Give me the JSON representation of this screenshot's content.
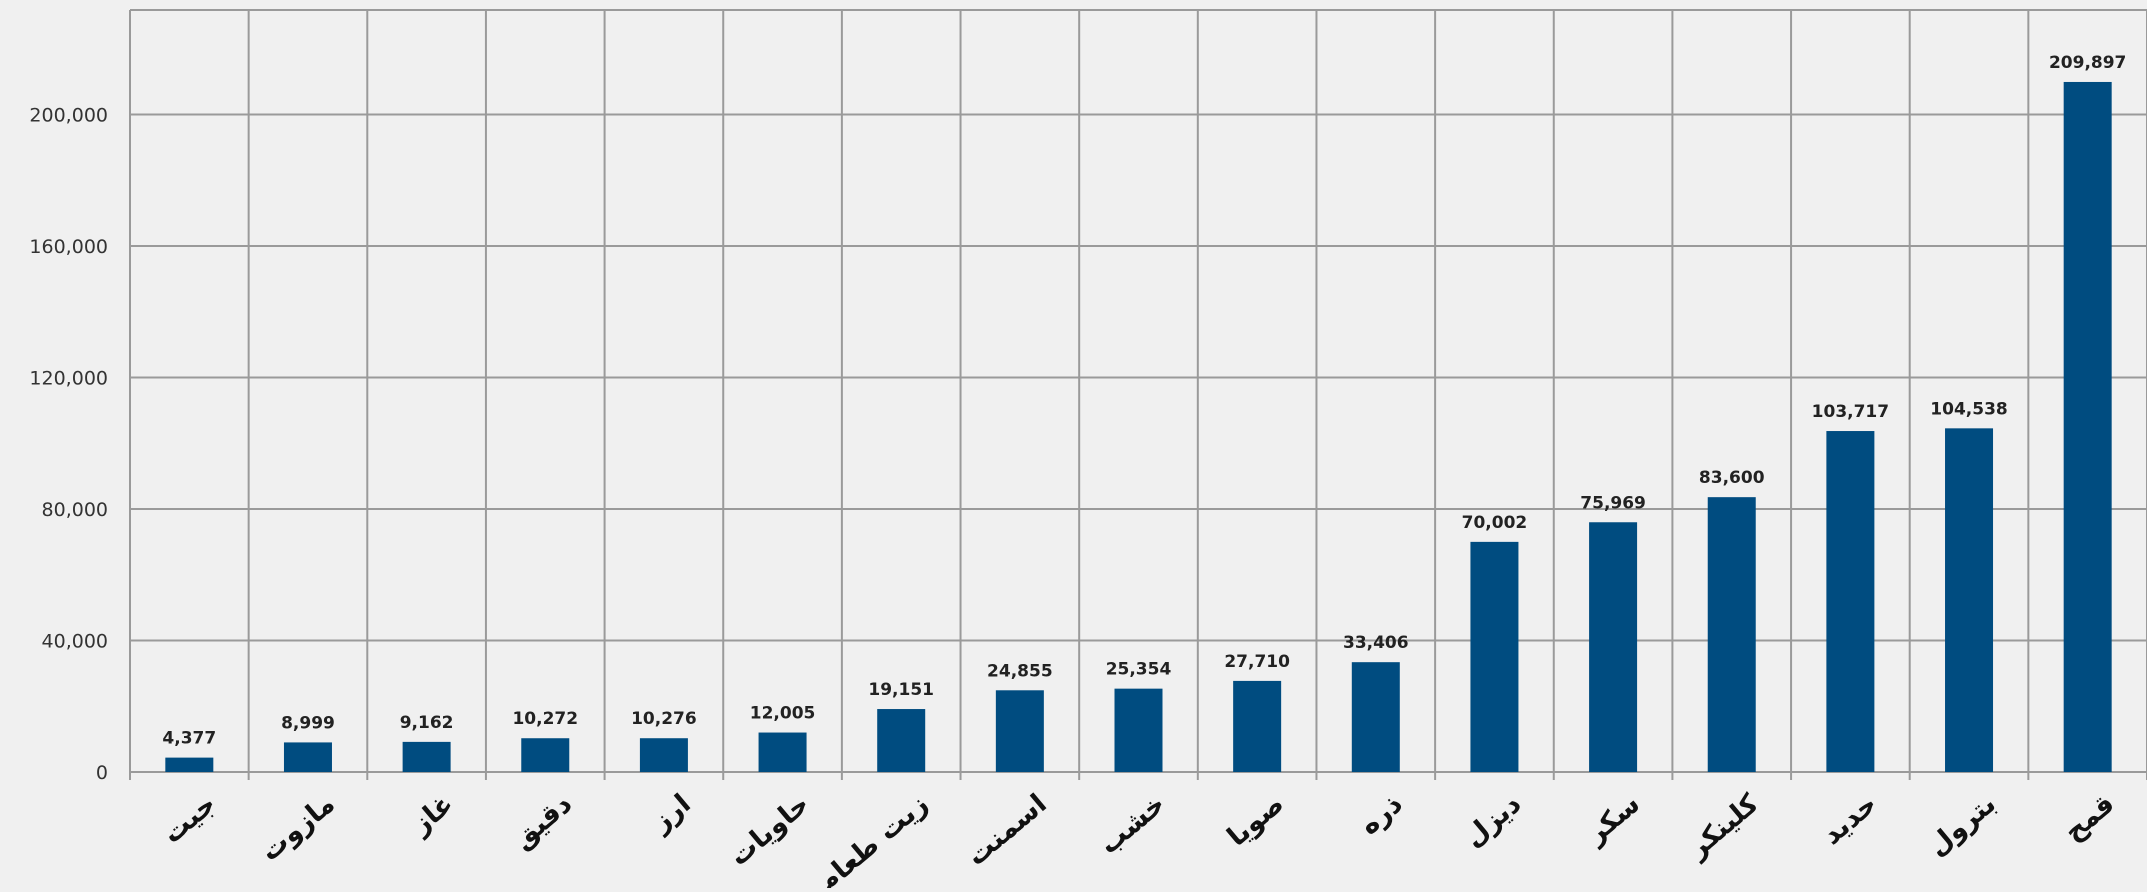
{
  "chart_data": {
    "type": "bar",
    "categories": [
      "جيت",
      "مازوت",
      "غاز",
      "دقيق",
      "ارز",
      "حاويات",
      "زيت طعام",
      "اسمنت",
      "خشب",
      "صويا",
      "ذره",
      "ديزل",
      "سكر",
      "كلينكر",
      "حديد",
      "بترول",
      "قمح"
    ],
    "values": [
      4377,
      8999,
      9162,
      10272,
      10276,
      12005,
      19151,
      24855,
      25354,
      27710,
      33406,
      70002,
      75969,
      83600,
      103717,
      104538,
      209897
    ],
    "data_labels": [
      "4,377",
      "8,999",
      "9,162",
      "10,272",
      "10,276",
      "12,005",
      "19,151",
      "24,855",
      "25,354",
      "27,710",
      "33,406",
      "70,002",
      "75,969",
      "83,600",
      "103,717",
      "104,538",
      "209,897"
    ],
    "y_ticks": [
      0,
      40000,
      80000,
      120000,
      160000,
      200000
    ],
    "y_tick_labels": [
      "0",
      "40,000",
      "80,000",
      "120,000",
      "160,000",
      "200,000"
    ],
    "ylim": [
      0,
      230000
    ],
    "grid": true,
    "title": "",
    "xlabel": "",
    "ylabel": ""
  },
  "colors": {
    "bar": "#004c80",
    "background": "#f0f0f0",
    "grid": "#9a9a9a"
  }
}
